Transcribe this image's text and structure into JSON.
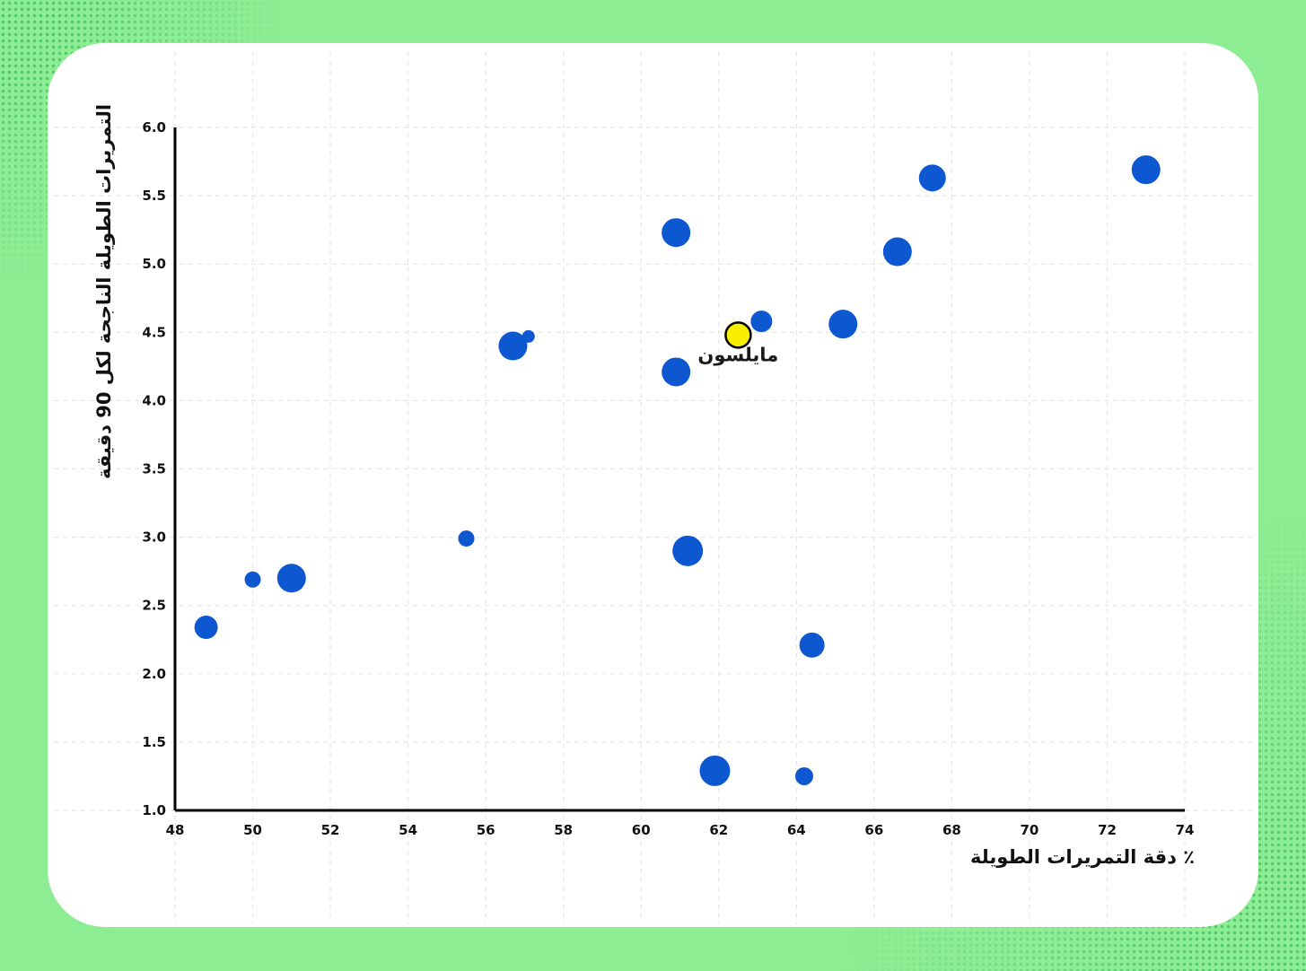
{
  "chart_data": {
    "type": "scatter",
    "xlabel": "دقة التمريرات الطويلة ٪",
    "ylabel": "التمريرات الطويلة الناجحة لكل 90 دقيقة",
    "xlim": [
      48,
      74
    ],
    "ylim": [
      1.0,
      6.0
    ],
    "xticks": [
      48,
      50,
      52,
      54,
      56,
      58,
      60,
      62,
      64,
      66,
      68,
      70,
      72,
      74
    ],
    "yticks": [
      1.0,
      1.5,
      2.0,
      2.5,
      3.0,
      3.5,
      4.0,
      4.5,
      5.0,
      5.5,
      6.0
    ],
    "grid": true,
    "point_color": "#0d57d0",
    "highlight_color": "#f7ee00",
    "points": [
      {
        "x": 48.8,
        "y": 2.34,
        "size": 13
      },
      {
        "x": 50.0,
        "y": 2.69,
        "size": 9
      },
      {
        "x": 51.0,
        "y": 2.7,
        "size": 16
      },
      {
        "x": 55.5,
        "y": 2.99,
        "size": 9
      },
      {
        "x": 56.7,
        "y": 4.4,
        "size": 16
      },
      {
        "x": 57.1,
        "y": 4.47,
        "size": 7
      },
      {
        "x": 60.9,
        "y": 5.23,
        "size": 16
      },
      {
        "x": 60.9,
        "y": 4.21,
        "size": 16
      },
      {
        "x": 61.2,
        "y": 2.9,
        "size": 17
      },
      {
        "x": 61.9,
        "y": 1.29,
        "size": 17
      },
      {
        "x": 63.1,
        "y": 4.58,
        "size": 12
      },
      {
        "x": 64.2,
        "y": 1.25,
        "size": 10
      },
      {
        "x": 64.4,
        "y": 2.21,
        "size": 14
      },
      {
        "x": 65.2,
        "y": 4.56,
        "size": 16
      },
      {
        "x": 66.6,
        "y": 5.09,
        "size": 16
      },
      {
        "x": 67.5,
        "y": 5.63,
        "size": 15
      },
      {
        "x": 73.0,
        "y": 5.69,
        "size": 16
      }
    ],
    "highlight": {
      "x": 62.5,
      "y": 4.48,
      "size": 14,
      "label": "مايلسون"
    }
  }
}
